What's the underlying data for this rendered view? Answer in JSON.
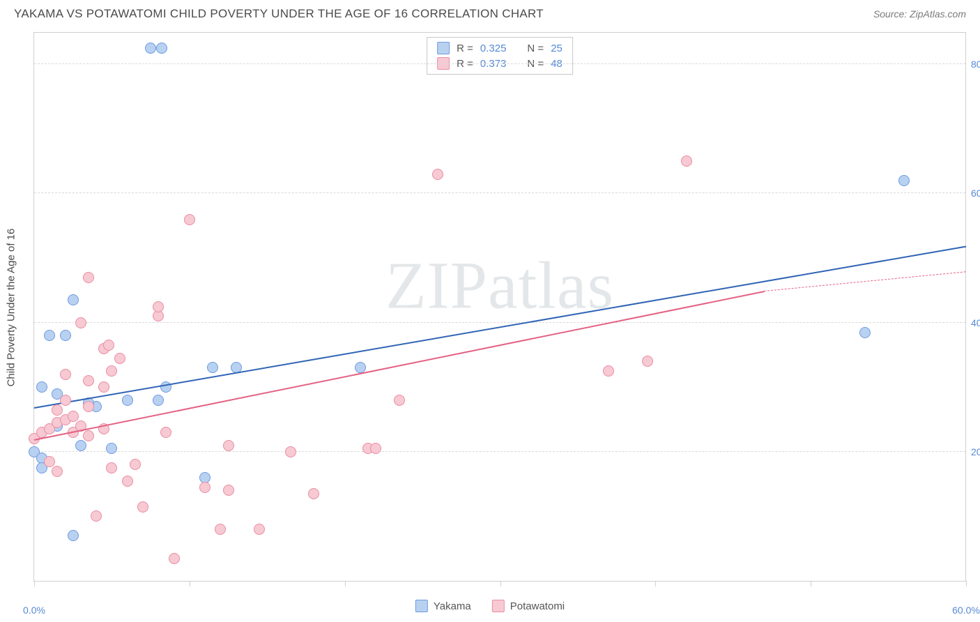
{
  "header": {
    "title": "YAKAMA VS POTAWATOMI CHILD POVERTY UNDER THE AGE OF 16 CORRELATION CHART",
    "source": "Source: ZipAtlas.com"
  },
  "watermark": "ZIPatlas",
  "chart": {
    "type": "scatter",
    "y_axis_title": "Child Poverty Under the Age of 16",
    "xlim": [
      0,
      60
    ],
    "ylim": [
      0,
      85
    ],
    "x_ticks": [
      0,
      10,
      20,
      30,
      40,
      50,
      60
    ],
    "x_tick_labels_shown": {
      "0": "0.0%",
      "60": "60.0%"
    },
    "y_ticks": [
      20,
      40,
      60,
      80
    ],
    "y_tick_labels": {
      "20": "20.0%",
      "40": "40.0%",
      "60": "60.0%",
      "80": "80.0%"
    },
    "grid_color": "#d8d8d8",
    "axis_color": "#cfcfcf",
    "background_color": "#ffffff",
    "marker_radius": 8,
    "marker_stroke_width": 1.5,
    "marker_fill_opacity": 0.35,
    "series": {
      "yakama": {
        "label": "Yakama",
        "stroke": "#6b9be0",
        "fill": "#b9d1f1",
        "R": "0.325",
        "N": "25",
        "trend": {
          "x1": 0,
          "y1": 27,
          "x2": 60,
          "y2": 52,
          "color": "#2f64b5",
          "width": 2.2
        },
        "points": [
          [
            7.5,
            82.5
          ],
          [
            8.2,
            82.5
          ],
          [
            1.0,
            38.0
          ],
          [
            2.0,
            38.0
          ],
          [
            2.5,
            43.5
          ],
          [
            0.5,
            30.0
          ],
          [
            1.5,
            29.0
          ],
          [
            0.0,
            20.0
          ],
          [
            0.5,
            19.0
          ],
          [
            0.5,
            17.5
          ],
          [
            3.0,
            21.0
          ],
          [
            4.0,
            27.0
          ],
          [
            5.0,
            20.5
          ],
          [
            6.0,
            28.0
          ],
          [
            8.0,
            28.0
          ],
          [
            8.5,
            30.0
          ],
          [
            11.5,
            33.0
          ],
          [
            11.0,
            16.0
          ],
          [
            2.5,
            7.0
          ],
          [
            21.0,
            33.0
          ],
          [
            3.5,
            27.5
          ],
          [
            53.5,
            38.5
          ],
          [
            56.0,
            62.0
          ],
          [
            1.5,
            24.0
          ],
          [
            13.0,
            33.0
          ]
        ]
      },
      "potawatomi": {
        "label": "Potawatomi",
        "stroke": "#e98da2",
        "fill": "#f7c9d3",
        "R": "0.373",
        "N": "48",
        "trend": {
          "x1": 0,
          "y1": 22,
          "x2": 47,
          "y2": 45,
          "color": "#e46182",
          "width": 2.2,
          "dash_extend_to": 60,
          "dash_y": 48
        },
        "points": [
          [
            0.0,
            22.0
          ],
          [
            0.5,
            23.0
          ],
          [
            1.0,
            23.5
          ],
          [
            1.5,
            24.5
          ],
          [
            1.0,
            18.5
          ],
          [
            1.5,
            17.0
          ],
          [
            2.0,
            25.0
          ],
          [
            2.5,
            25.5
          ],
          [
            2.5,
            23.0
          ],
          [
            3.0,
            24.0
          ],
          [
            2.0,
            28.0
          ],
          [
            3.5,
            31.0
          ],
          [
            3.5,
            27.0
          ],
          [
            3.0,
            40.0
          ],
          [
            3.5,
            47.0
          ],
          [
            4.5,
            30.0
          ],
          [
            4.5,
            36.0
          ],
          [
            4.8,
            36.5
          ],
          [
            5.0,
            32.5
          ],
          [
            5.5,
            34.5
          ],
          [
            6.0,
            15.5
          ],
          [
            7.0,
            11.5
          ],
          [
            8.0,
            41.0
          ],
          [
            8.0,
            42.5
          ],
          [
            8.5,
            23.0
          ],
          [
            9.0,
            3.5
          ],
          [
            10.0,
            56.0
          ],
          [
            11.0,
            14.5
          ],
          [
            12.0,
            8.0
          ],
          [
            12.5,
            21.0
          ],
          [
            12.5,
            14.0
          ],
          [
            14.5,
            8.0
          ],
          [
            16.5,
            20.0
          ],
          [
            18.0,
            13.5
          ],
          [
            23.5,
            28.0
          ],
          [
            21.5,
            20.5
          ],
          [
            22.0,
            20.5
          ],
          [
            37.0,
            32.5
          ],
          [
            39.5,
            34.0
          ],
          [
            42.0,
            65.0
          ],
          [
            26.0,
            63.0
          ],
          [
            5.0,
            17.5
          ],
          [
            1.5,
            26.5
          ],
          [
            3.5,
            22.5
          ],
          [
            4.0,
            10.0
          ],
          [
            2.0,
            32.0
          ],
          [
            4.5,
            23.5
          ],
          [
            6.5,
            18.0
          ]
        ]
      }
    },
    "legend_top": [
      {
        "swatch_series": "yakama",
        "r_label": "R =",
        "r_val": "0.325",
        "n_label": "N =",
        "n_val": "25"
      },
      {
        "swatch_series": "potawatomi",
        "r_label": "R =",
        "r_val": "0.373",
        "n_label": "N =",
        "n_val": "48"
      }
    ],
    "legend_bottom": [
      {
        "swatch_series": "yakama",
        "label": "Yakama"
      },
      {
        "swatch_series": "potawatomi",
        "label": "Potawatomi"
      }
    ]
  }
}
